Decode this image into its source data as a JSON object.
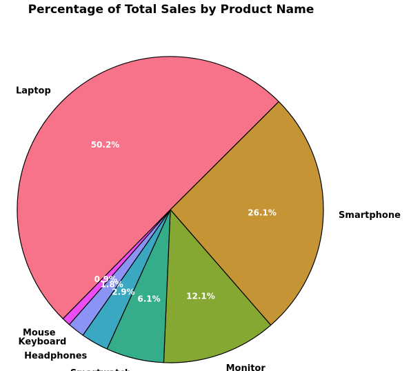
{
  "chart_data": {
    "type": "pie",
    "title": "Percentage of Total Sales by Product Name",
    "slices": [
      {
        "label": "Smartphone",
        "value": 26.1,
        "pct_label": "26.1%",
        "color": "#c59434"
      },
      {
        "label": "Monitor",
        "value": 12.1,
        "pct_label": "12.1%",
        "color": "#85a833"
      },
      {
        "label": "Smartwatch",
        "value": 6.1,
        "pct_label": "6.1%",
        "color": "#36ad8a"
      },
      {
        "label": "Headphones",
        "value": 2.9,
        "pct_label": "2.9%",
        "color": "#3aa8c1"
      },
      {
        "label": "Keyboard",
        "value": 1.8,
        "pct_label": "1.8%",
        "color": "#8b94f5"
      },
      {
        "label": "Mouse",
        "value": 0.9,
        "pct_label": "0.9%",
        "color": "#ee4df4"
      },
      {
        "label": "Laptop",
        "value": 50.2,
        "pct_label": "50.2%",
        "color": "#f6738a"
      }
    ],
    "edge_color": "#000000"
  }
}
